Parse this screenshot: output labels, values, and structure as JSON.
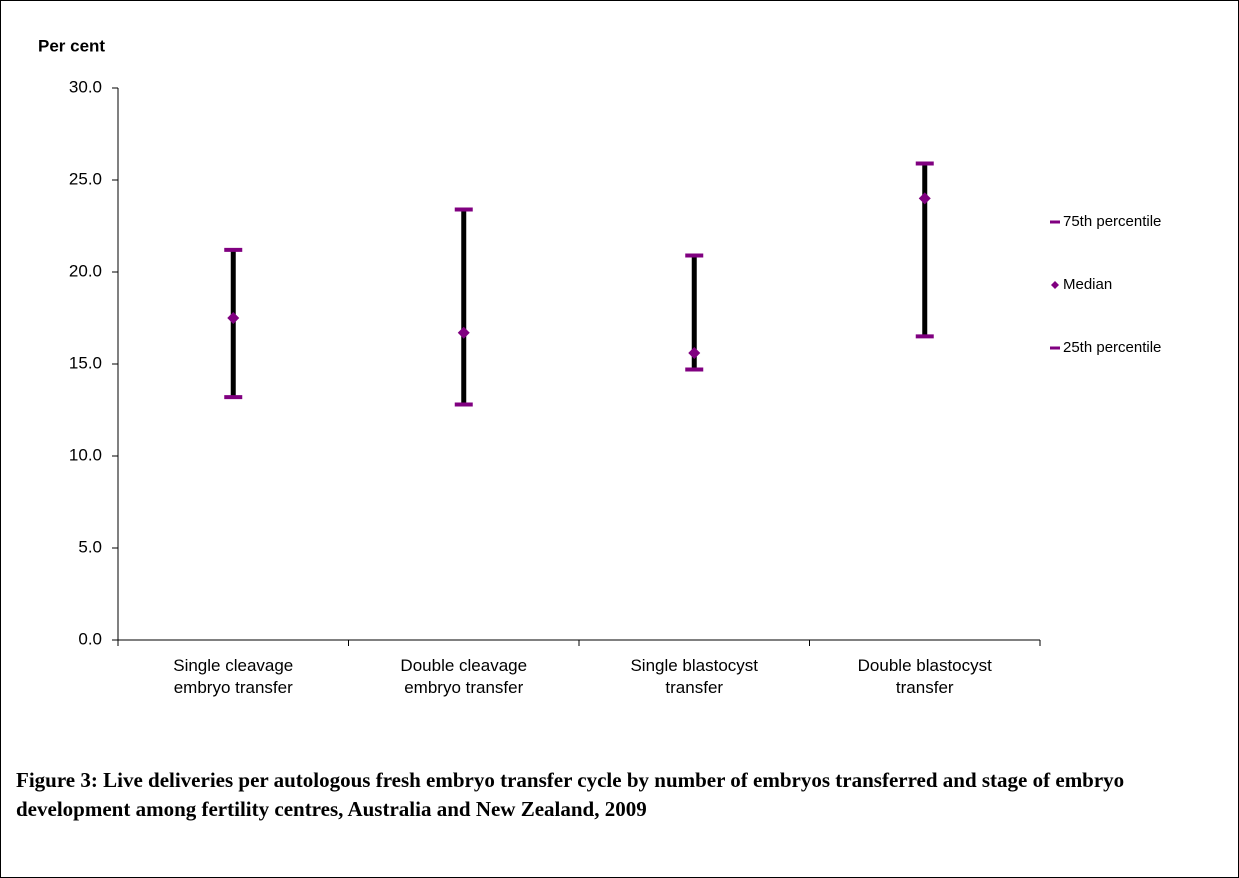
{
  "chart_data": {
    "type": "hilo",
    "y_label": "Per cent",
    "caption": "Figure 3: Live deliveries per autologous fresh embryo transfer cycle by number of embryos transferred and stage of embryo development among fertility centres, Australia and New Zealand, 2009",
    "categories": [
      "Single cleavage embryo transfer",
      "Double cleavage embryo transfer",
      "Single blastocyst transfer",
      "Double blastocyst transfer"
    ],
    "series": [
      {
        "name": "75th percentile",
        "color": "#800080",
        "marker": "dash",
        "values": [
          21.2,
          23.4,
          20.9,
          25.9
        ]
      },
      {
        "name": "Median",
        "color": "#800080",
        "marker": "diamond",
        "values": [
          17.5,
          16.7,
          15.6,
          24.0
        ]
      },
      {
        "name": "25th percentile",
        "color": "#800080",
        "marker": "dash",
        "values": [
          13.2,
          12.8,
          14.7,
          16.5
        ]
      }
    ],
    "range_line_color": "#000000",
    "ylim": [
      0,
      30
    ],
    "yticks": [
      {
        "value": 0,
        "label": "0.0"
      },
      {
        "value": 5,
        "label": "5.0"
      },
      {
        "value": 10,
        "label": "10.0"
      },
      {
        "value": 15,
        "label": "15.0"
      },
      {
        "value": 20,
        "label": "20.0"
      },
      {
        "value": 25,
        "label": "25.0"
      },
      {
        "value": 30,
        "label": "30.0"
      }
    ],
    "legend": "right"
  }
}
